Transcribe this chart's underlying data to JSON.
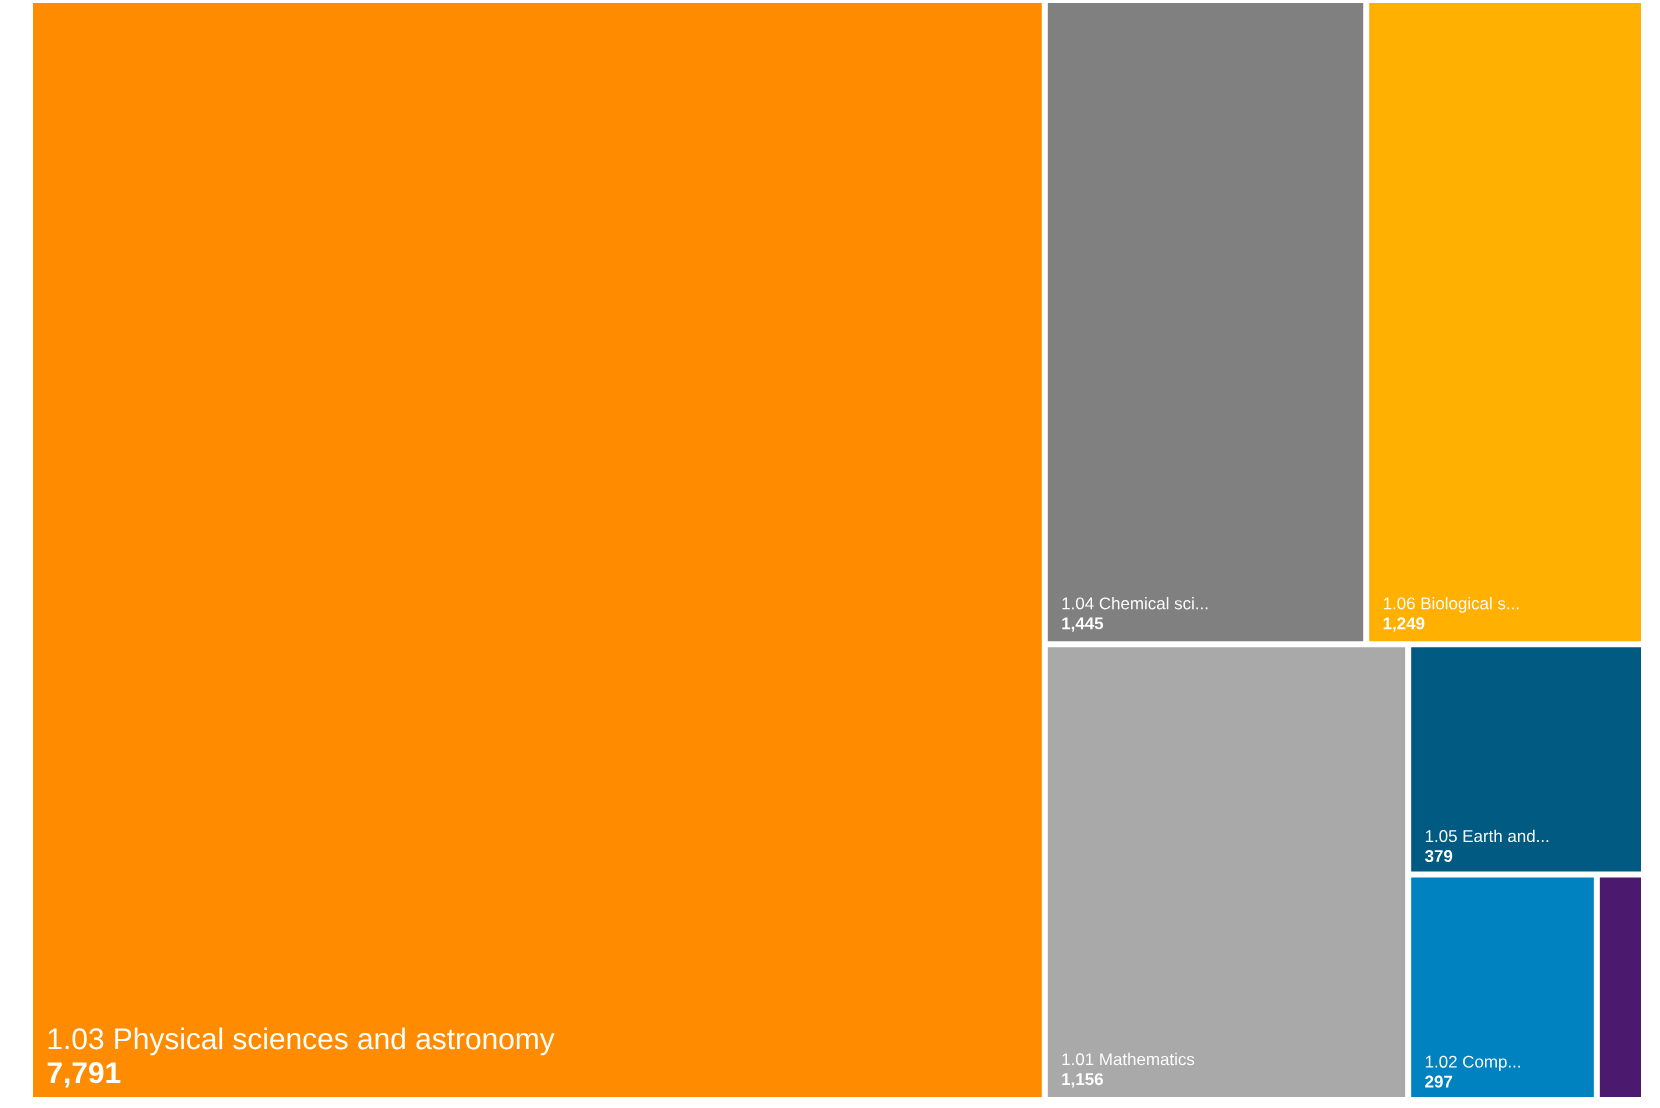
{
  "chart_data": {
    "type": "other",
    "categories": [
      "1.03 Physical sciences and astronomy",
      "1.04 Chemical sci...",
      "1.06 Biological s...",
      "1.01 Mathematics",
      "1.05 Earth and...",
      "1.02 Comp...",
      null
    ],
    "values": [
      7791,
      1445,
      1249,
      1156,
      379,
      297,
      null
    ],
    "value_labels": [
      "7,791",
      "1,445",
      "1,249",
      "1,156",
      "379",
      "297",
      null
    ],
    "colors": [
      "#ff8c00",
      "#808080",
      "#ffb000",
      "#a9a9a9",
      "#005a82",
      "#0082c0",
      "#4b1a6e"
    ]
  }
}
